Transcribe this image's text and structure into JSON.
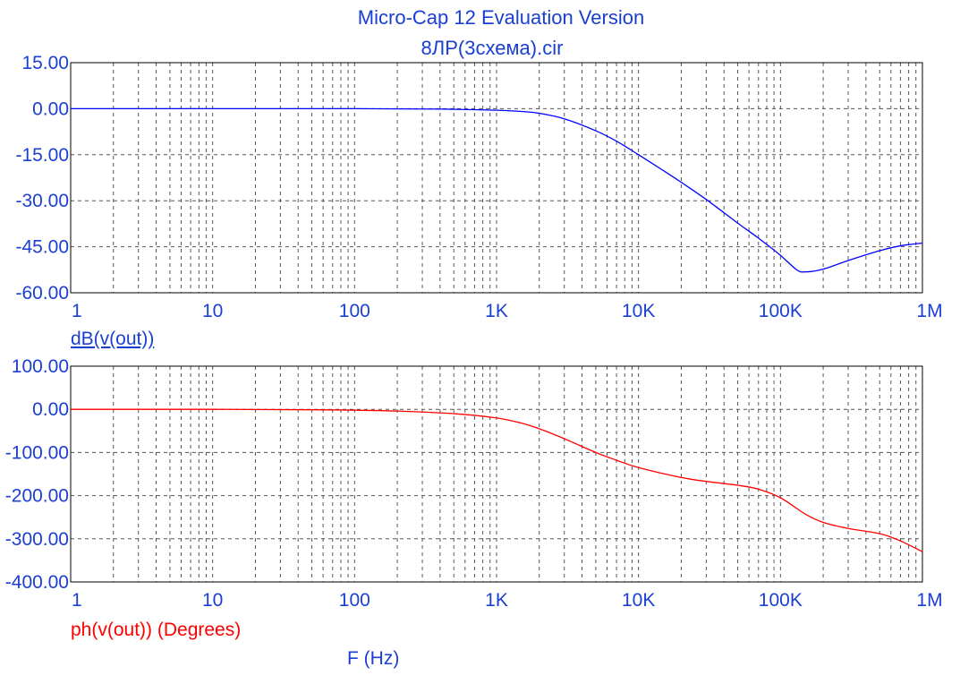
{
  "header": {
    "title": "Micro-Cap 12 Evaluation Version",
    "subtitle": "8ЛР(3схема).cir"
  },
  "colors": {
    "text": "#1a3fd1",
    "magnitude_trace": "#0000ff",
    "phase_trace": "#ff0000"
  },
  "chart_data": [
    {
      "type": "line",
      "name": "magnitude-plot",
      "xscale": "log",
      "xlim": [
        1,
        1000000
      ],
      "ylim": [
        -60,
        15
      ],
      "yticks": [
        15,
        0,
        -15,
        -30,
        -45,
        -60
      ],
      "ytick_labels": [
        "15.00",
        "0.00",
        "-15.00",
        "-30.00",
        "-45.00",
        "-60.00"
      ],
      "xticks": [
        1,
        10,
        100,
        1000,
        10000,
        100000,
        1000000
      ],
      "xtick_labels": [
        "1",
        "10",
        "100",
        "1K",
        "10K",
        "100K",
        "1M"
      ],
      "grid": true,
      "ylabel": "dB(v(out))",
      "series": [
        {
          "name": "dB(v(out))",
          "color": "#0000ff",
          "x": [
            1,
            10,
            100,
            300,
            500,
            1000,
            1500,
            2000,
            3000,
            5000,
            7000,
            10000,
            15000,
            20000,
            30000,
            50000,
            70000,
            100000,
            130000,
            150000,
            200000,
            300000,
            500000,
            700000,
            1000000
          ],
          "y": [
            0,
            0,
            0,
            -0.1,
            -0.2,
            -0.5,
            -0.9,
            -1.5,
            -3.3,
            -7.2,
            -10.6,
            -15,
            -20.2,
            -24,
            -29.6,
            -37.3,
            -42.2,
            -47.8,
            -52.5,
            -53.2,
            -52.3,
            -49.5,
            -46.3,
            -44.7,
            -43.8
          ]
        }
      ]
    },
    {
      "type": "line",
      "name": "phase-plot",
      "xscale": "log",
      "xlim": [
        1,
        1000000
      ],
      "ylim": [
        -400,
        100
      ],
      "yticks": [
        100,
        0,
        -100,
        -200,
        -300,
        -400
      ],
      "ytick_labels": [
        "100.00",
        "0.00",
        "-100.00",
        "-200.00",
        "-300.00",
        "-400.00"
      ],
      "xticks": [
        1,
        10,
        100,
        1000,
        10000,
        100000,
        1000000
      ],
      "xtick_labels": [
        "1",
        "10",
        "100",
        "1K",
        "10K",
        "100K",
        "1M"
      ],
      "grid": true,
      "ylabel": "ph(v(out)) (Degrees)",
      "xlabel": "F (Hz)",
      "series": [
        {
          "name": "ph(v(out)) (Degrees)",
          "color": "#ff0000",
          "x": [
            1,
            10,
            50,
            100,
            200,
            500,
            1000,
            1500,
            2000,
            3000,
            5000,
            7000,
            10000,
            20000,
            30000,
            50000,
            70000,
            100000,
            150000,
            200000,
            300000,
            500000,
            700000,
            1000000
          ],
          "y": [
            0,
            0,
            -1,
            -2,
            -4,
            -10,
            -20,
            -32,
            -45,
            -68,
            -100,
            -118,
            -135,
            -158,
            -167,
            -176,
            -185,
            -205,
            -243,
            -262,
            -276,
            -288,
            -305,
            -330
          ]
        }
      ]
    }
  ]
}
